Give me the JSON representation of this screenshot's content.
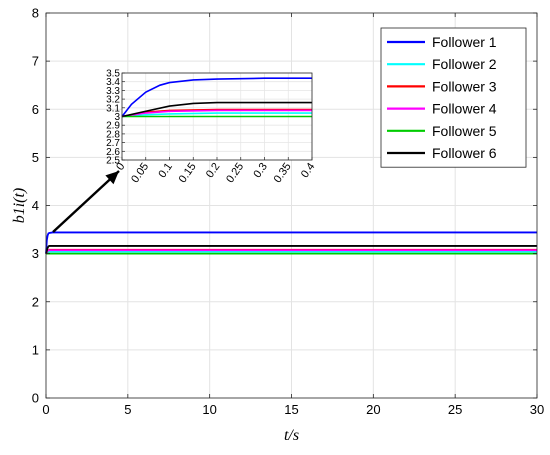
{
  "chart_data": [
    {
      "type": "line",
      "title": "",
      "xlabel": "t/s",
      "ylabel": "b1i(t)",
      "xlim": [
        0,
        30
      ],
      "ylim": [
        0,
        8
      ],
      "xticks": [
        0,
        5,
        10,
        15,
        20,
        25,
        30
      ],
      "yticks": [
        0,
        1,
        2,
        3,
        4,
        5,
        6,
        7,
        8
      ],
      "grid": true,
      "legend_position": "top-right",
      "series": [
        {
          "name": "Follower 1",
          "color": "#0000ff",
          "x": [
            0,
            0.05,
            0.1,
            0.15,
            0.2,
            0.4,
            30
          ],
          "y": [
            3.0,
            3.28,
            3.38,
            3.42,
            3.43,
            3.44,
            3.44
          ]
        },
        {
          "name": "Follower 2",
          "color": "#00ffff",
          "x": [
            0,
            0.1,
            0.2,
            0.4,
            30
          ],
          "y": [
            3.0,
            3.03,
            3.04,
            3.04,
            3.04
          ]
        },
        {
          "name": "Follower 3",
          "color": "#ff0000",
          "x": [
            0,
            0.1,
            0.2,
            0.4,
            30
          ],
          "y": [
            3.0,
            3.06,
            3.08,
            3.08,
            3.08
          ]
        },
        {
          "name": "Follower 4",
          "color": "#ff00ff",
          "x": [
            0,
            0.1,
            0.2,
            0.4,
            30
          ],
          "y": [
            3.0,
            3.06,
            3.07,
            3.07,
            3.07
          ]
        },
        {
          "name": "Follower 5",
          "color": "#00cc00",
          "x": [
            0,
            0.1,
            0.2,
            0.4,
            30
          ],
          "y": [
            3.0,
            3.0,
            3.0,
            3.0,
            3.0
          ]
        },
        {
          "name": "Follower 6",
          "color": "#000000",
          "x": [
            0,
            0.05,
            0.1,
            0.15,
            0.2,
            0.4,
            30
          ],
          "y": [
            3.0,
            3.06,
            3.12,
            3.15,
            3.16,
            3.16,
            3.16
          ]
        }
      ]
    },
    {
      "type": "line",
      "title": "",
      "xlabel": "",
      "ylabel": "",
      "xlim": [
        0,
        0.4
      ],
      "ylim": [
        2.5,
        3.5
      ],
      "xticks": [
        0,
        0.05,
        0.1,
        0.15,
        0.2,
        0.25,
        0.3,
        0.35,
        0.4
      ],
      "yticks": [
        2.5,
        2.6,
        2.7,
        2.8,
        2.9,
        3,
        3.1,
        3.2,
        3.3,
        3.4,
        3.5
      ],
      "grid": true,
      "series": [
        {
          "name": "Follower 1",
          "color": "#0000ff",
          "x": [
            0,
            0.02,
            0.05,
            0.08,
            0.1,
            0.15,
            0.2,
            0.3,
            0.4
          ],
          "y": [
            3.0,
            3.14,
            3.28,
            3.36,
            3.39,
            3.42,
            3.43,
            3.44,
            3.44
          ]
        },
        {
          "name": "Follower 2",
          "color": "#00ffff",
          "x": [
            0,
            0.05,
            0.1,
            0.2,
            0.4
          ],
          "y": [
            3.0,
            3.02,
            3.03,
            3.04,
            3.04
          ]
        },
        {
          "name": "Follower 3",
          "color": "#ff0000",
          "x": [
            0,
            0.05,
            0.1,
            0.2,
            0.4
          ],
          "y": [
            3.0,
            3.05,
            3.07,
            3.08,
            3.08
          ]
        },
        {
          "name": "Follower 4",
          "color": "#ff00ff",
          "x": [
            0,
            0.05,
            0.1,
            0.2,
            0.4
          ],
          "y": [
            3.0,
            3.04,
            3.06,
            3.07,
            3.07
          ]
        },
        {
          "name": "Follower 5",
          "color": "#00cc00",
          "x": [
            0,
            0.1,
            0.2,
            0.4
          ],
          "y": [
            3.0,
            3.0,
            3.0,
            3.0
          ]
        },
        {
          "name": "Follower 6",
          "color": "#000000",
          "x": [
            0,
            0.05,
            0.1,
            0.15,
            0.2,
            0.3,
            0.4
          ],
          "y": [
            3.0,
            3.06,
            3.12,
            3.15,
            3.16,
            3.16,
            3.16
          ]
        }
      ]
    }
  ]
}
